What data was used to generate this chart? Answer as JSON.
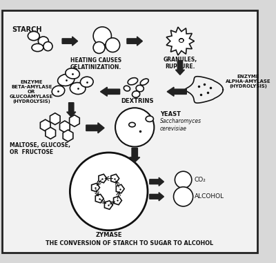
{
  "title": "THE CONVERSION OF STARCH TO SUGAR TO ALCOHOL",
  "background_color": "#d8d8d8",
  "inner_bg": "#f2f2f2",
  "border_color": "#222222",
  "text_color": "#111111",
  "labels": {
    "starch": "STARCH",
    "heating": "HEATING CAUSES\nGELATINIZATION.",
    "granules": "GRANULES,\nRUPTURE.",
    "dextrins": "DEXTRINS",
    "enzyme_alpha": "ENZYME\nALPHA-AMYLASE\n(HYDROLYSIS)",
    "enzyme_beta": "ENZYME\nBETA-AMYLASE\nOR\nGLUCOAMYLASE\n(HYDROLYSIS)",
    "maltose": "MALTOSE, GLUCOSE,\nOR  FRUCTOSE",
    "yeast_title": "YEAST",
    "yeast_sub": "Saccharomyces\ncerevisiae",
    "zymase": "ZYMASE",
    "co2": "CO₂",
    "alcohol": "ALCOHOL"
  }
}
